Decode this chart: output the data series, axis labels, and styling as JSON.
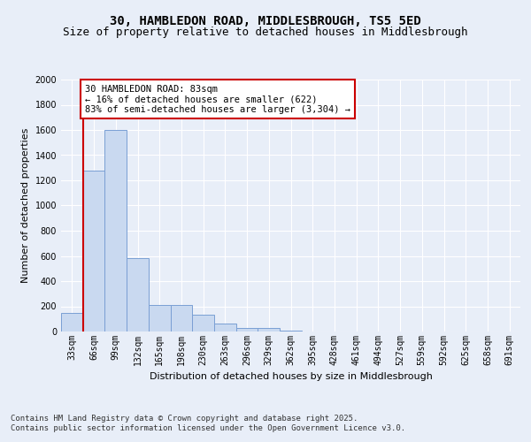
{
  "title_line1": "30, HAMBLEDON ROAD, MIDDLESBROUGH, TS5 5ED",
  "title_line2": "Size of property relative to detached houses in Middlesbrough",
  "xlabel": "Distribution of detached houses by size in Middlesbrough",
  "ylabel": "Number of detached properties",
  "categories": [
    "33sqm",
    "66sqm",
    "99sqm",
    "132sqm",
    "165sqm",
    "198sqm",
    "230sqm",
    "263sqm",
    "296sqm",
    "329sqm",
    "362sqm",
    "395sqm",
    "428sqm",
    "461sqm",
    "494sqm",
    "527sqm",
    "559sqm",
    "592sqm",
    "625sqm",
    "658sqm",
    "691sqm"
  ],
  "values": [
    150,
    1280,
    1600,
    580,
    210,
    210,
    130,
    60,
    30,
    30,
    10,
    0,
    0,
    0,
    0,
    0,
    0,
    0,
    0,
    0,
    0
  ],
  "bar_color": "#c9d9f0",
  "bar_edge_color": "#7a9fd4",
  "vline_x": 1.0,
  "vline_color": "#cc0000",
  "annotation_text": "30 HAMBLEDON ROAD: 83sqm\n← 16% of detached houses are smaller (622)\n83% of semi-detached houses are larger (3,304) →",
  "annotation_box_color": "white",
  "annotation_box_edge_color": "#cc0000",
  "ylim": [
    0,
    2000
  ],
  "yticks": [
    0,
    200,
    400,
    600,
    800,
    1000,
    1200,
    1400,
    1600,
    1800,
    2000
  ],
  "background_color": "#e8eef8",
  "plot_background": "#e8eef8",
  "footer_line1": "Contains HM Land Registry data © Crown copyright and database right 2025.",
  "footer_line2": "Contains public sector information licensed under the Open Government Licence v3.0.",
  "title_fontsize": 10,
  "subtitle_fontsize": 9,
  "axis_label_fontsize": 8,
  "tick_fontsize": 7,
  "annotation_fontsize": 7.5,
  "footer_fontsize": 6.5
}
